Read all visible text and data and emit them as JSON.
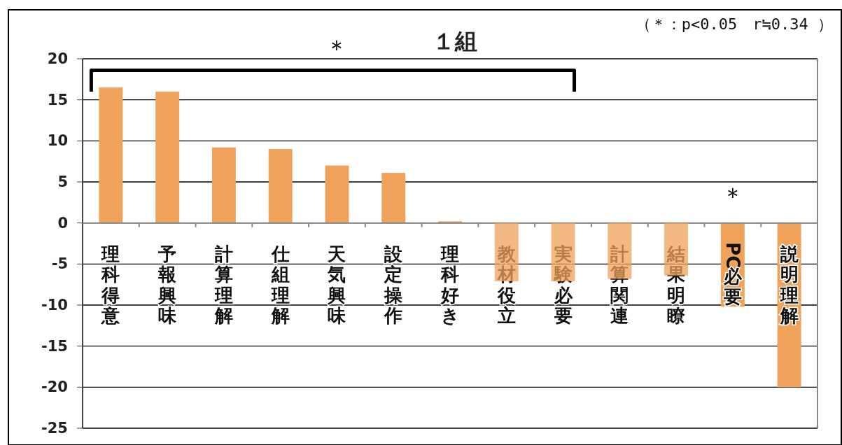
{
  "chart_data": {
    "type": "bar",
    "title": "１組",
    "categories": [
      "理科得意",
      "予報興味",
      "計算理解",
      "仕組理解",
      "天気興味",
      "設定操作",
      "理科好き",
      "教材役立",
      "実験必要",
      "計算関連",
      "結果明瞭",
      "PC必要",
      "説明理解"
    ],
    "values": [
      16.5,
      16,
      9.2,
      9,
      7,
      6.1,
      0.2,
      -7.1,
      -7.1,
      -6.8,
      -6.4,
      -10.2,
      -20
    ],
    "color": "#f0a25a",
    "ylim": [
      -25,
      20
    ],
    "yticks": [
      -25,
      -20,
      -15,
      -10,
      -5,
      0,
      5,
      10,
      15,
      20
    ],
    "grid": "y",
    "annotations": [
      "（＊：p<0.05　r≒0.34 ）",
      "＊",
      "＊"
    ]
  }
}
